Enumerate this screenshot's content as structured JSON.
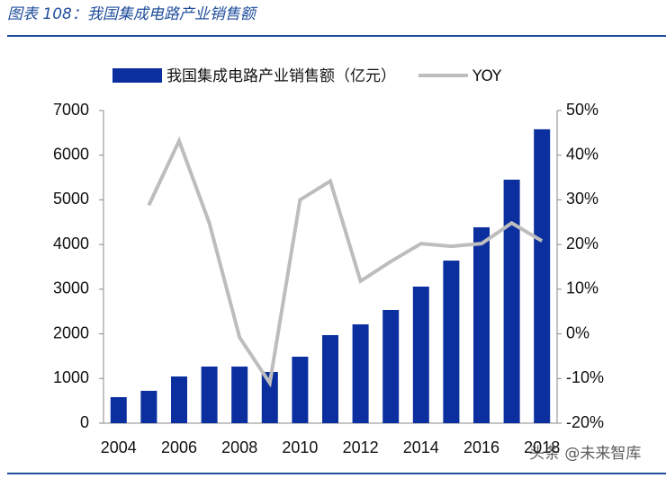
{
  "chart_data": {
    "type": "bar-line",
    "title": "图表 108：我国集成电路产业销售额",
    "categories": [
      "2004",
      null,
      "2006",
      null,
      "2008",
      null,
      "2010",
      null,
      "2012",
      null,
      "2014",
      null,
      "2016",
      null,
      "2018"
    ],
    "series": [
      {
        "name": "我国集成电路产业销售额（亿元）",
        "type": "bar",
        "color": "#0b2f9e",
        "values": [
          583,
          725,
          1046,
          1268,
          1268,
          1147,
          1489,
          1972,
          2213,
          2535,
          3058,
          3640,
          4386,
          5452,
          6580
        ]
      },
      {
        "name": "YOY",
        "type": "line",
        "axis": "y2",
        "color": "#bdbdbd",
        "values": [
          null,
          28.8,
          43.2,
          24.8,
          -0.8,
          -11,
          30,
          34.2,
          11.8,
          16.2,
          20.2,
          19.6,
          20.2,
          24.8,
          20.8
        ]
      }
    ],
    "ylim": [
      0,
      7000
    ],
    "yticks": [
      0,
      1000,
      2000,
      3000,
      4000,
      5000,
      6000,
      7000
    ],
    "y2lim": [
      -20,
      50
    ],
    "y2ticks": [
      {
        "value": -20,
        "label": "-20%"
      },
      {
        "value": -10,
        "label": "-10%"
      },
      {
        "value": 0,
        "label": "0%"
      },
      {
        "value": 10,
        "label": "10%"
      },
      {
        "value": 20,
        "label": "20%"
      },
      {
        "value": 30,
        "label": "30%"
      },
      {
        "value": 40,
        "label": "40%"
      },
      {
        "value": 50,
        "label": "50%"
      }
    ],
    "watermark": "头条 @未来智库"
  }
}
